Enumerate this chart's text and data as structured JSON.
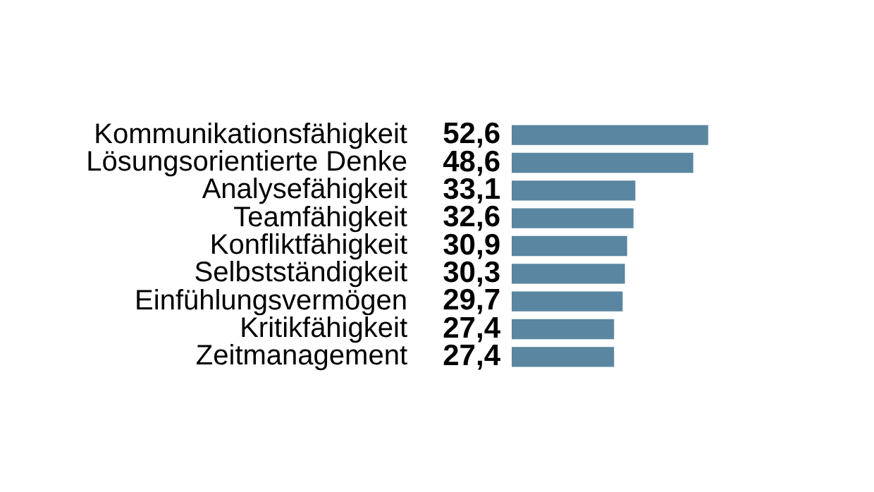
{
  "chart_data": {
    "type": "bar",
    "orientation": "horizontal",
    "categories": [
      "Kommunikationsfähigkeit",
      "Lösungsorientierte Denke",
      "Analysefähigkeit",
      "Teamfähigkeit",
      "Konfliktfähigkeit",
      "Selbstständigkeit",
      "Einfühlungsvermögen",
      "Kritikfähigkeit",
      "Zeitmanagement"
    ],
    "values": [
      52.6,
      48.6,
      33.1,
      32.6,
      30.9,
      30.3,
      29.7,
      27.4,
      27.4
    ],
    "value_labels": [
      "52,6",
      "48,6",
      "33,1",
      "32,6",
      "30,9",
      "30,3",
      "29,7",
      "27,4",
      "27,4"
    ],
    "color": "#5a86a1",
    "legend": false
  }
}
